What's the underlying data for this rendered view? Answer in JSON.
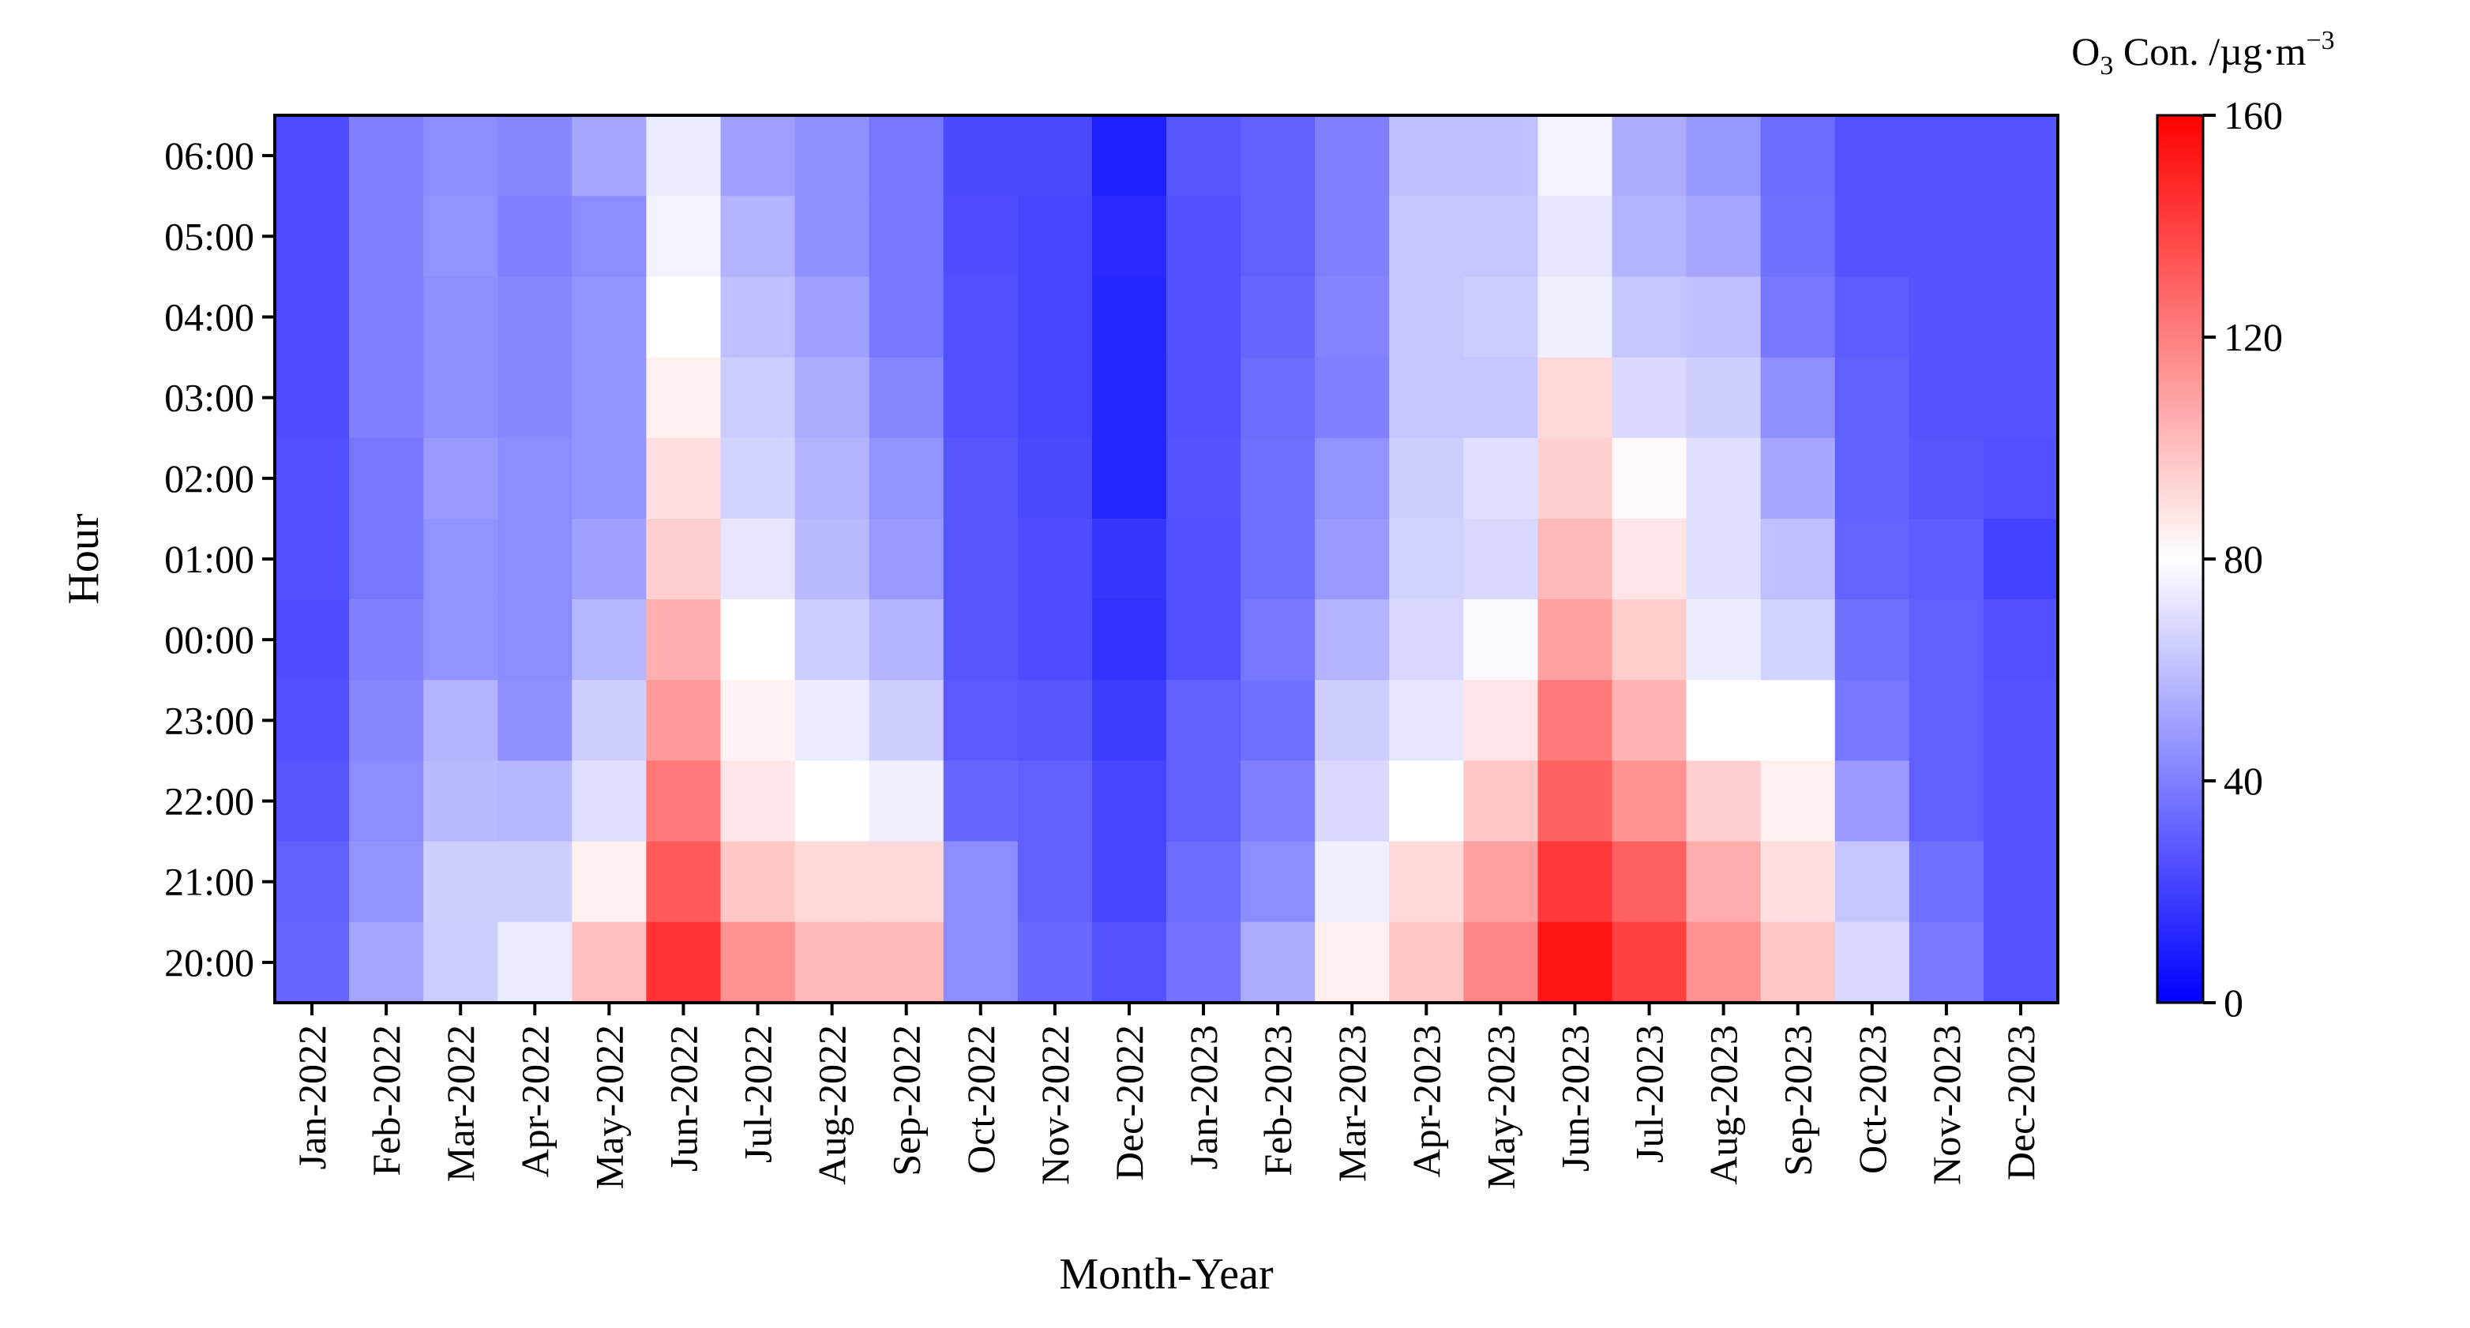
{
  "chart_data": {
    "type": "heatmap",
    "xlabel": "Month-Year",
    "ylabel": "Hour",
    "colorbar": {
      "title": "O3 Con. /µg·m-3",
      "title_parts": {
        "symbol": "O",
        "subscript": "3",
        "text": " Con. /µg·m",
        "superscript": "−3"
      },
      "range": [
        0,
        160
      ],
      "ticks": [
        0,
        40,
        80,
        120,
        160
      ],
      "colormap": "bwr",
      "colors": {
        "low": "#0000ff",
        "mid": "#ffffff",
        "high": "#ff0000"
      }
    },
    "x_categories": [
      "Jan-2022",
      "Feb-2022",
      "Mar-2022",
      "Apr-2022",
      "May-2022",
      "Jun-2022",
      "Jul-2022",
      "Aug-2022",
      "Sep-2022",
      "Oct-2022",
      "Nov-2022",
      "Dec-2022",
      "Jan-2023",
      "Feb-2023",
      "Mar-2023",
      "Apr-2023",
      "May-2023",
      "Jun-2023",
      "Jul-2023",
      "Aug-2023",
      "Sep-2023",
      "Oct-2023",
      "Nov-2023",
      "Dec-2023"
    ],
    "y_categories": [
      "06:00",
      "05:00",
      "04:00",
      "03:00",
      "02:00",
      "01:00",
      "00:00",
      "23:00",
      "22:00",
      "21:00",
      "20:00"
    ],
    "values": [
      [
        24,
        40,
        44,
        42,
        52,
        74,
        50,
        45,
        37,
        23,
        23,
        10,
        27,
        30,
        40,
        60,
        60,
        76,
        54,
        47,
        34,
        26,
        26,
        26
      ],
      [
        24,
        40,
        46,
        40,
        44,
        76,
        56,
        45,
        37,
        24,
        22,
        13,
        25,
        30,
        40,
        62,
        62,
        72,
        56,
        52,
        35,
        26,
        26,
        26
      ],
      [
        24,
        40,
        45,
        42,
        46,
        80,
        60,
        50,
        37,
        25,
        22,
        12,
        25,
        32,
        41,
        62,
        64,
        75,
        62,
        60,
        37,
        29,
        26,
        26
      ],
      [
        24,
        40,
        45,
        42,
        46,
        85,
        64,
        54,
        42,
        25,
        22,
        12,
        25,
        34,
        40,
        62,
        62,
        92,
        68,
        65,
        45,
        30,
        26,
        26
      ],
      [
        25,
        37,
        48,
        44,
        46,
        90,
        66,
        56,
        46,
        27,
        23,
        12,
        26,
        35,
        46,
        65,
        70,
        95,
        82,
        70,
        52,
        30,
        27,
        25
      ],
      [
        25,
        37,
        46,
        44,
        50,
        95,
        72,
        58,
        48,
        27,
        24,
        17,
        25,
        35,
        48,
        66,
        68,
        102,
        88,
        70,
        60,
        31,
        29,
        21
      ],
      [
        24,
        40,
        46,
        44,
        57,
        105,
        80,
        64,
        56,
        27,
        24,
        16,
        25,
        37,
        56,
        67,
        78,
        110,
        96,
        74,
        66,
        35,
        30,
        25
      ],
      [
        25,
        42,
        56,
        45,
        65,
        112,
        84,
        74,
        65,
        28,
        27,
        19,
        30,
        35,
        65,
        72,
        88,
        122,
        104,
        80,
        80,
        37,
        30,
        26
      ],
      [
        27,
        44,
        58,
        57,
        70,
        122,
        88,
        80,
        75,
        32,
        30,
        22,
        30,
        40,
        68,
        80,
        98,
        130,
        114,
        95,
        85,
        48,
        30,
        26
      ],
      [
        30,
        46,
        65,
        65,
        85,
        132,
        98,
        92,
        92,
        44,
        30,
        22,
        34,
        44,
        75,
        92,
        110,
        142,
        130,
        106,
        90,
        62,
        35,
        26
      ],
      [
        32,
        52,
        64,
        74,
        100,
        144,
        114,
        102,
        102,
        44,
        33,
        26,
        36,
        54,
        85,
        98,
        118,
        154,
        140,
        114,
        98,
        68,
        38,
        26
      ]
    ]
  }
}
